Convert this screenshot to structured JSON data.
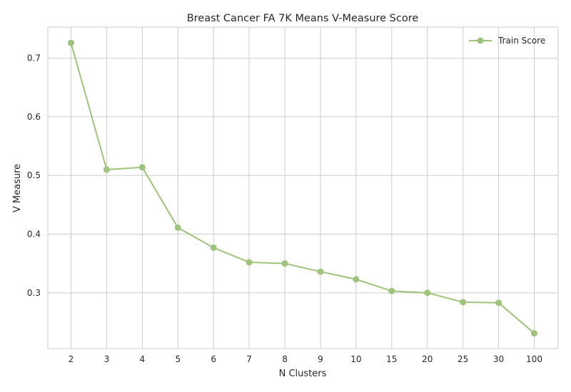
{
  "chart_data": {
    "type": "line",
    "title": "Breast Cancer FA 7K Means V-Measure Score",
    "xlabel": "N Clusters",
    "ylabel": "V Measure",
    "categories": [
      "2",
      "3",
      "4",
      "5",
      "6",
      "7",
      "8",
      "9",
      "10",
      "15",
      "20",
      "25",
      "30",
      "100"
    ],
    "series": [
      {
        "name": "Train Score",
        "values": [
          0.726,
          0.51,
          0.514,
          0.411,
          0.377,
          0.352,
          0.35,
          0.336,
          0.323,
          0.303,
          0.3,
          0.284,
          0.283,
          0.231
        ],
        "color": "#9dc47a"
      }
    ],
    "yticks": [
      0.3,
      0.4,
      0.5,
      0.6,
      0.7
    ],
    "ylim": [
      0.205,
      0.753
    ],
    "grid": true,
    "legend_position": "top-right"
  }
}
